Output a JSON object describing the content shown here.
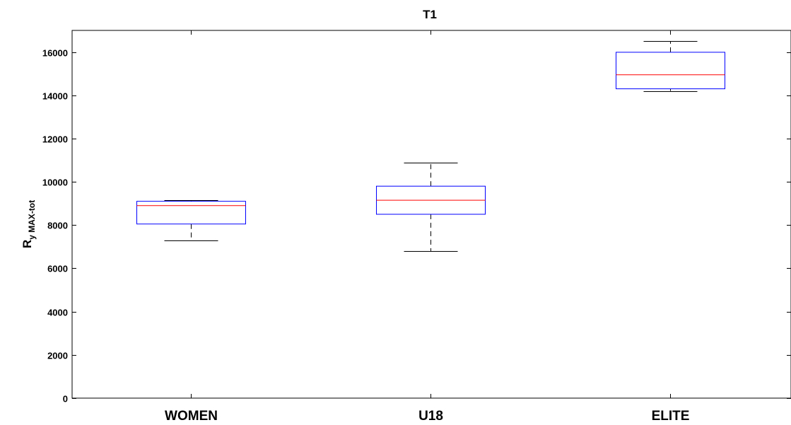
{
  "chart_data": {
    "type": "boxplot",
    "title": "T1",
    "ylabel": {
      "main": "R",
      "subscript": "y MAX-tot"
    },
    "xlabel": "",
    "ylim": [
      0,
      17000
    ],
    "yticks": [
      0,
      2000,
      4000,
      6000,
      8000,
      10000,
      12000,
      14000,
      16000
    ],
    "ytick_labels": [
      "0",
      "2000",
      "4000",
      "6000",
      "8000",
      "10000",
      "12000",
      "14000",
      "16000"
    ],
    "grid": false,
    "categories": [
      "WOMEN",
      "U18",
      "ELITE"
    ],
    "boxes": [
      {
        "category": "WOMEN",
        "whisker_low": 7300,
        "q1": 8050,
        "median": 8900,
        "q3": 9100,
        "whisker_high": 9150
      },
      {
        "category": "U18",
        "whisker_low": 6800,
        "q1": 8500,
        "median": 9150,
        "q3": 9800,
        "whisker_high": 10900
      },
      {
        "category": "ELITE",
        "whisker_low": 14200,
        "q1": 14300,
        "median": 14950,
        "q3": 15990,
        "whisker_high": 16500
      }
    ],
    "colors": {
      "box": "#0000ff",
      "median": "#ff0000",
      "whisker": "#000000",
      "axes": "#000000"
    }
  }
}
